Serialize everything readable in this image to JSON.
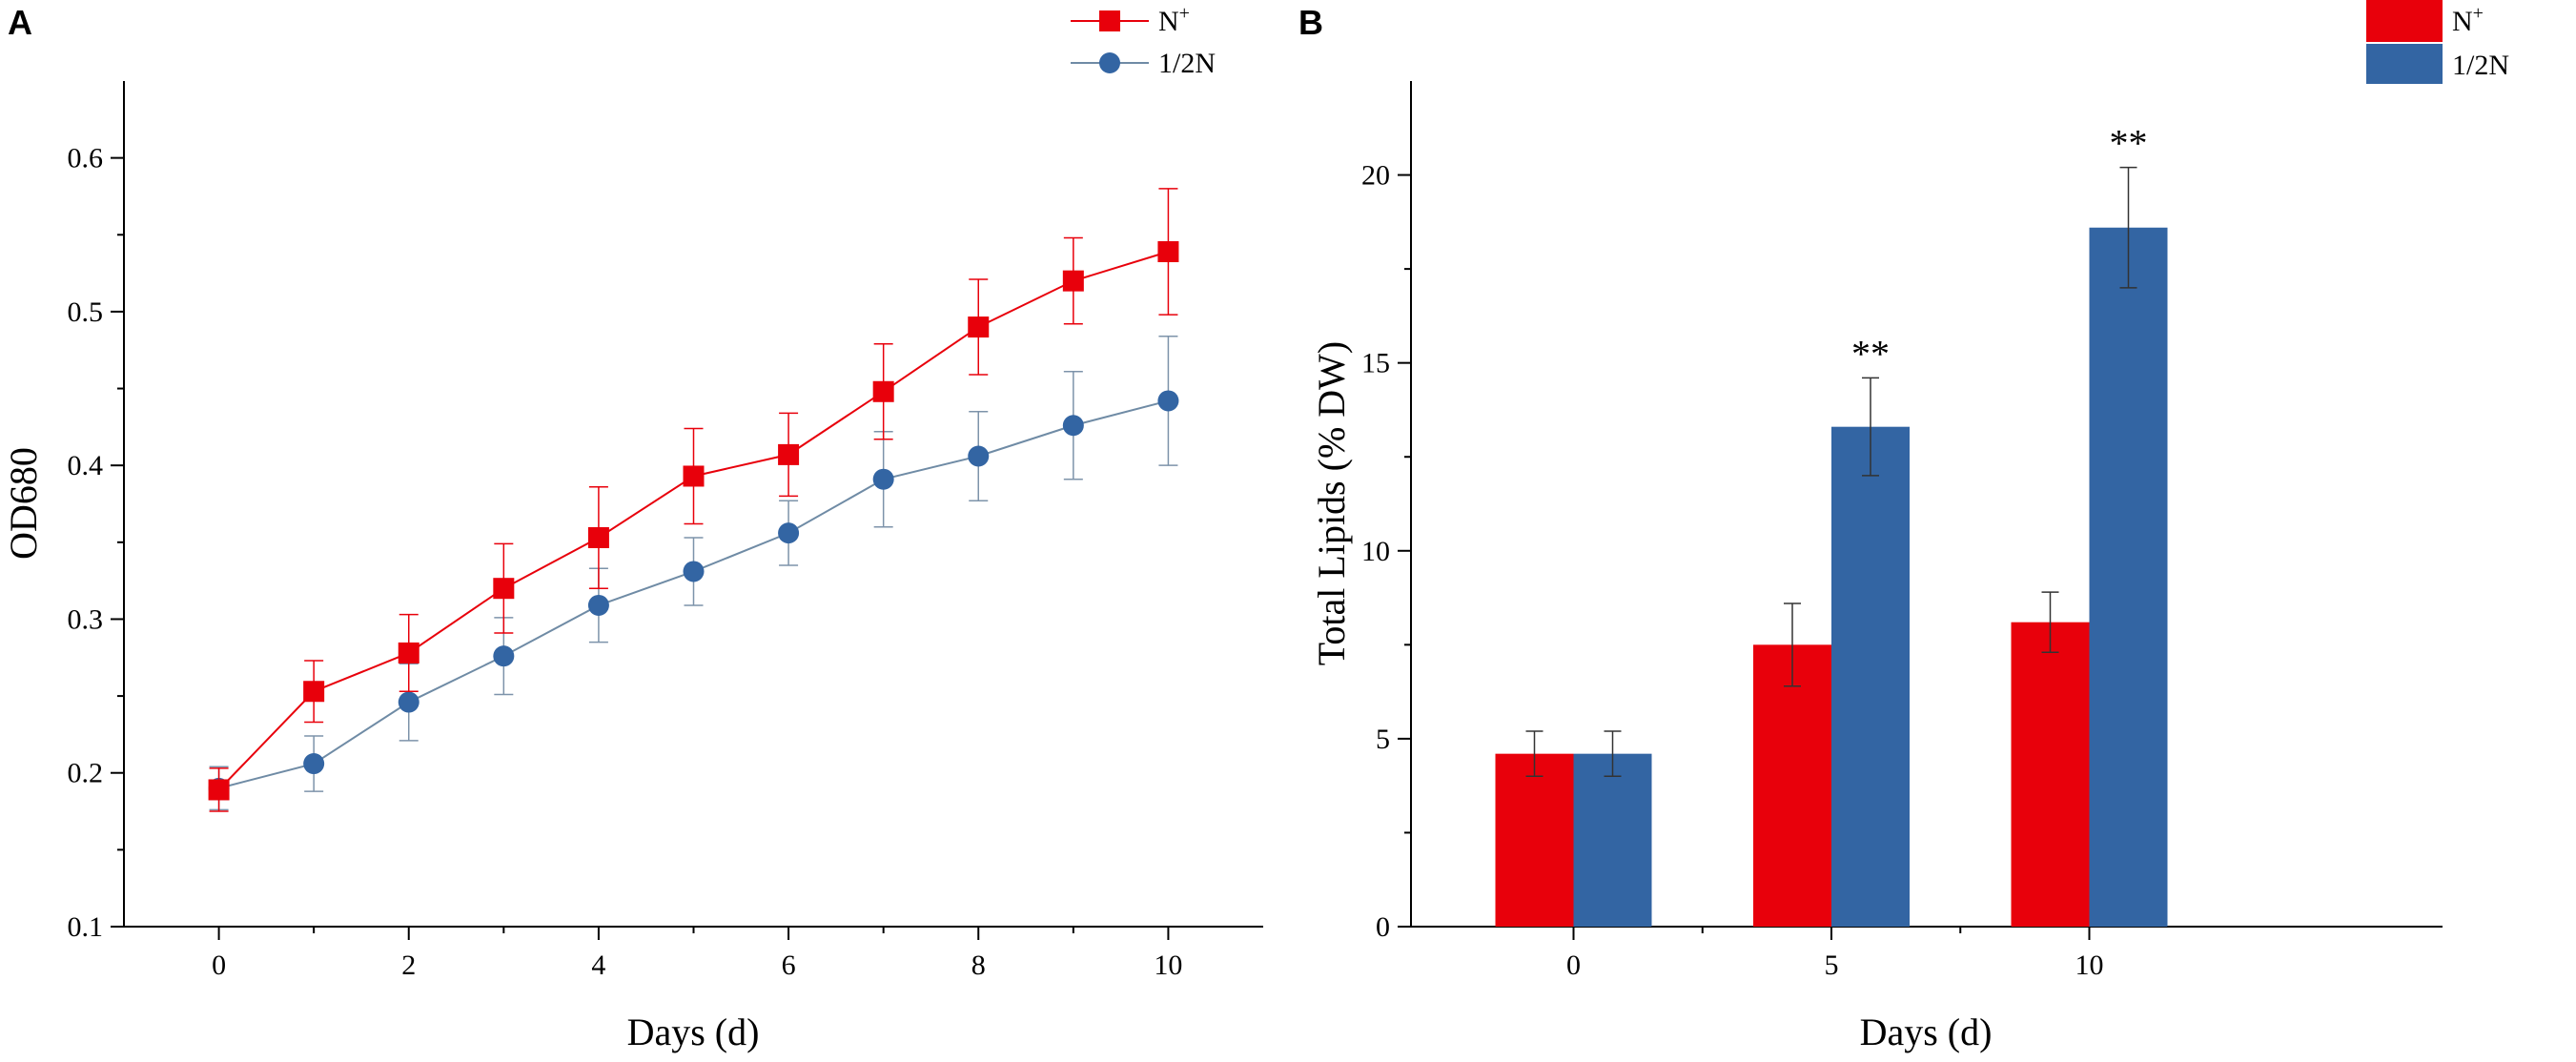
{
  "chart_data": [
    {
      "panel": "A",
      "type": "line",
      "xlabel": "Days (d)",
      "ylabel": "OD680",
      "xlim": [
        -1,
        11
      ],
      "ylim": [
        0.1,
        0.65
      ],
      "xticks": [
        0,
        2,
        4,
        6,
        8,
        10
      ],
      "yticks": [
        0.1,
        0.2,
        0.3,
        0.4,
        0.5,
        0.6
      ],
      "x": [
        0,
        1,
        2,
        3,
        4,
        5,
        6,
        7,
        8,
        9,
        10
      ],
      "legend_position": "top-right",
      "series": [
        {
          "name": "N",
          "name_sup": "+",
          "color": "#e8000b",
          "marker": "square",
          "values": [
            0.189,
            0.253,
            0.278,
            0.32,
            0.353,
            0.393,
            0.407,
            0.448,
            0.49,
            0.52,
            0.539
          ],
          "errors": [
            0.014,
            0.02,
            0.025,
            0.029,
            0.033,
            0.031,
            0.027,
            0.031,
            0.031,
            0.028,
            0.041
          ]
        },
        {
          "name": "1/2N",
          "color": "#3365a3",
          "marker": "circle",
          "values": [
            0.19,
            0.206,
            0.246,
            0.276,
            0.309,
            0.331,
            0.356,
            0.391,
            0.406,
            0.426,
            0.442
          ],
          "errors": [
            0.014,
            0.018,
            0.025,
            0.025,
            0.024,
            0.022,
            0.021,
            0.031,
            0.029,
            0.035,
            0.042
          ]
        }
      ]
    },
    {
      "panel": "B",
      "type": "bar",
      "xlabel": "Days (d)",
      "ylabel": "Total Lipids (% DW)",
      "categories": [
        "0",
        "5",
        "10"
      ],
      "ylim": [
        0,
        22.5
      ],
      "yticks": [
        0,
        5,
        10,
        15,
        20
      ],
      "legend_position": "top-right",
      "series": [
        {
          "name": "N",
          "name_sup": "+",
          "color": "#e8000b",
          "values": [
            4.6,
            7.5,
            8.1
          ],
          "errors": [
            0.6,
            1.1,
            0.8
          ],
          "annotations": [
            "",
            "",
            ""
          ]
        },
        {
          "name": "1/2N",
          "color": "#3365a3",
          "values": [
            4.6,
            13.3,
            18.6
          ],
          "errors": [
            0.6,
            1.3,
            1.6
          ],
          "annotations": [
            "",
            "**",
            "**"
          ]
        }
      ]
    }
  ]
}
